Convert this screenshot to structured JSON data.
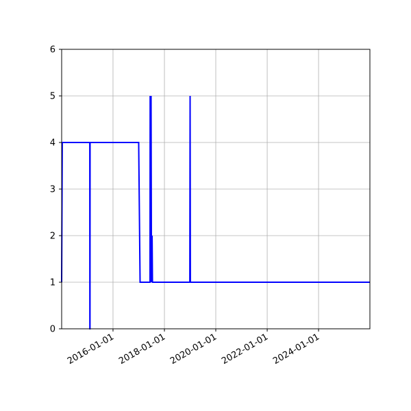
{
  "chart_data": {
    "type": "line",
    "title": "",
    "xlabel": "",
    "ylabel": "",
    "x_type": "date",
    "xlim": [
      "2014-01-01",
      "2025-12-31"
    ],
    "ylim": [
      0,
      6
    ],
    "grid": true,
    "legend": "none",
    "colors": {
      "line": "#0000ff",
      "grid": "#b0b0b0",
      "axes": "#000000"
    },
    "x_ticks": [
      "2016-01-01",
      "2018-01-01",
      "2020-01-01",
      "2022-01-01",
      "2024-01-01"
    ],
    "y_ticks": [
      "0",
      "1",
      "2",
      "3",
      "4",
      "5",
      "6"
    ],
    "series": [
      {
        "points": [
          [
            "2014-01-01",
            1
          ],
          [
            "2014-01-10",
            4
          ],
          [
            "2015-02-05",
            4
          ],
          [
            "2015-02-06",
            0
          ],
          [
            "2015-02-08",
            0
          ],
          [
            "2015-02-09",
            4
          ],
          [
            "2016-12-31",
            4
          ],
          [
            "2017-01-20",
            1
          ],
          [
            "2017-06-10",
            1
          ],
          [
            "2017-06-12",
            5
          ],
          [
            "2017-06-20",
            1
          ],
          [
            "2017-06-25",
            5
          ],
          [
            "2017-07-01",
            1
          ],
          [
            "2017-07-10",
            2
          ],
          [
            "2017-07-15",
            1
          ],
          [
            "2018-12-28",
            1
          ],
          [
            "2019-01-01",
            5
          ],
          [
            "2019-01-05",
            1
          ],
          [
            "2025-12-31",
            1
          ]
        ]
      }
    ]
  }
}
